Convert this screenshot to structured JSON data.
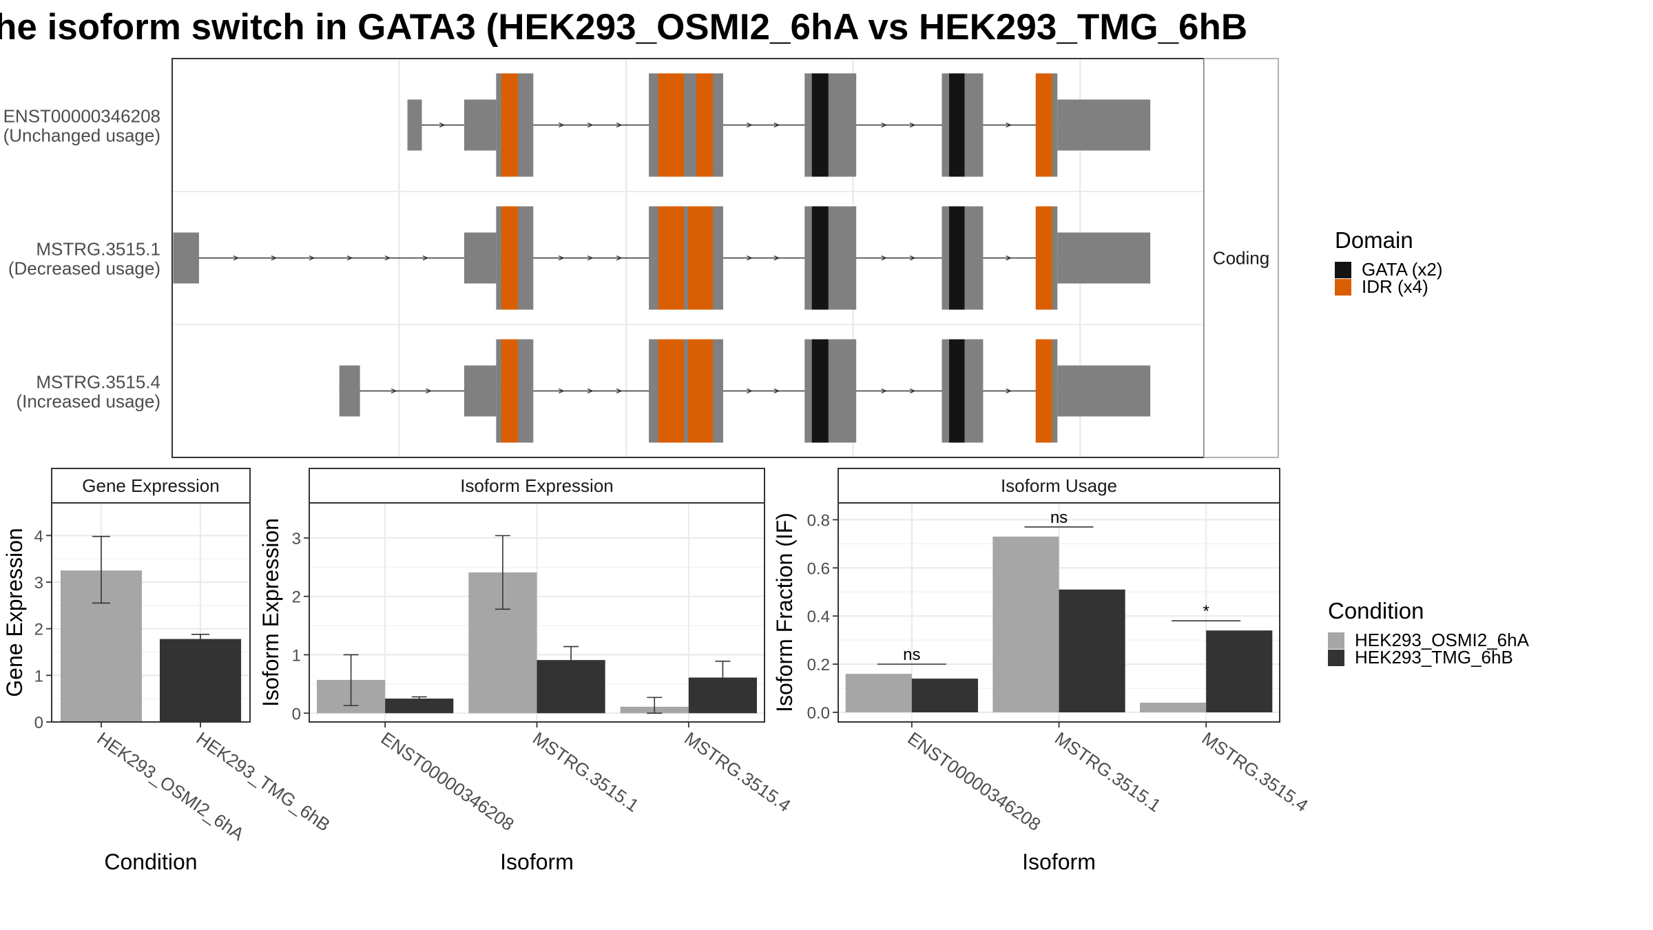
{
  "title": "he isoform switch in GATA3 (HEK293_OSMI2_6hA vs HEK293_TMG_6hB",
  "colors": {
    "exon": "#808080",
    "gata": "#141414",
    "idr": "#d95f02",
    "cond1": "#a6a6a6",
    "cond2": "#333333",
    "grid": "#ebebeb",
    "strip_bg": "#ffffff",
    "border": "#333333"
  },
  "transcript_panel": {
    "facet_label": "Coding",
    "genomic_range": [
      3,
      103
    ],
    "isoforms": [
      {
        "id": "ENST00000346208",
        "usage": "(Unchanged usage)",
        "utr": [
          [
            25.8,
            27.2
          ],
          [
            31.3,
            34.4
          ],
          [
            88.8,
            97.8
          ]
        ],
        "cds": [
          [
            34.4,
            38.0
          ],
          [
            49.2,
            56.4
          ],
          [
            64.3,
            69.3
          ],
          [
            77.6,
            81.6
          ],
          [
            86.7,
            88.8
          ]
        ],
        "domains": [
          {
            "type": "idr",
            "range": [
              34.9,
              36.5
            ]
          },
          {
            "type": "idr",
            "range": [
              50.1,
              52.6
            ]
          },
          {
            "type": "idr",
            "range": [
              53.8,
              55.4
            ]
          },
          {
            "type": "gata",
            "range": [
              65.0,
              66.6
            ]
          },
          {
            "type": "gata",
            "range": [
              78.3,
              79.8
            ]
          },
          {
            "type": "idr",
            "range": [
              86.7,
              88.3
            ]
          }
        ]
      },
      {
        "id": "MSTRG.3515.1",
        "usage": "(Decreased usage)",
        "utr": [
          [
            3.1,
            5.6
          ],
          [
            31.3,
            34.4
          ],
          [
            88.8,
            97.8
          ]
        ],
        "cds": [
          [
            34.4,
            38.0
          ],
          [
            49.2,
            56.4
          ],
          [
            64.3,
            69.3
          ],
          [
            77.6,
            81.6
          ],
          [
            86.7,
            88.8
          ]
        ],
        "domains": [
          {
            "type": "idr",
            "range": [
              34.9,
              36.5
            ]
          },
          {
            "type": "idr",
            "range": [
              50.1,
              52.6
            ]
          },
          {
            "type": "idr",
            "range": [
              53.0,
              55.4
            ]
          },
          {
            "type": "gata",
            "range": [
              65.0,
              66.6
            ]
          },
          {
            "type": "gata",
            "range": [
              78.3,
              79.8
            ]
          },
          {
            "type": "idr",
            "range": [
              86.7,
              88.3
            ]
          }
        ]
      },
      {
        "id": "MSTRG.3515.4",
        "usage": "(Increased usage)",
        "utr": [
          [
            19.2,
            21.2
          ],
          [
            31.3,
            34.4
          ],
          [
            88.8,
            97.8
          ]
        ],
        "cds": [
          [
            34.4,
            38.0
          ],
          [
            49.2,
            56.4
          ],
          [
            64.3,
            69.3
          ],
          [
            77.6,
            81.6
          ],
          [
            86.7,
            88.8
          ]
        ],
        "domains": [
          {
            "type": "idr",
            "range": [
              34.9,
              36.5
            ]
          },
          {
            "type": "idr",
            "range": [
              50.1,
              52.6
            ]
          },
          {
            "type": "idr",
            "range": [
              53.0,
              55.4
            ]
          },
          {
            "type": "gata",
            "range": [
              65.0,
              66.6
            ]
          },
          {
            "type": "gata",
            "range": [
              78.3,
              79.8
            ]
          },
          {
            "type": "idr",
            "range": [
              86.7,
              88.3
            ]
          }
        ]
      }
    ]
  },
  "domain_legend": {
    "title": "Domain",
    "items": [
      {
        "label": "GATA (x2)",
        "color": "#141414"
      },
      {
        "label": "IDR (x4)",
        "color": "#d95f02"
      }
    ]
  },
  "condition_legend": {
    "title": "Condition",
    "items": [
      {
        "label": "HEK293_OSMI2_6hA",
        "color": "#a6a6a6"
      },
      {
        "label": "HEK293_TMG_6hB",
        "color": "#333333"
      }
    ]
  },
  "chart_data": [
    {
      "type": "bar",
      "title": "Gene Expression",
      "xlabel": "Condition",
      "ylabel": "Gene Expression",
      "ylim": [
        0,
        4.7
      ],
      "yticks": [
        0,
        1,
        2,
        3,
        4
      ],
      "categories": [
        "HEK293_OSMI2_6hA",
        "HEK293_TMG_6hB"
      ],
      "values": [
        3.25,
        1.78
      ],
      "errors": [
        [
          2.55,
          3.98
        ],
        [
          1.7,
          1.88
        ]
      ],
      "colors": [
        "#a6a6a6",
        "#333333"
      ]
    },
    {
      "type": "bar",
      "title": "Isoform Expression",
      "xlabel": "Isoform",
      "ylabel": "Isoform Expression",
      "ylim": [
        -0.15,
        3.6
      ],
      "yticks": [
        0,
        1,
        2,
        3
      ],
      "categories": [
        "ENST00000346208",
        "MSTRG.3515.1",
        "MSTRG.3515.4"
      ],
      "series": [
        {
          "name": "HEK293_OSMI2_6hA",
          "color": "#a6a6a6",
          "values": [
            0.57,
            2.41,
            0.11
          ],
          "errors": [
            [
              0.13,
              1.0
            ],
            [
              1.78,
              3.04
            ],
            [
              0.0,
              0.27
            ]
          ]
        },
        {
          "name": "HEK293_TMG_6hB",
          "color": "#333333",
          "values": [
            0.25,
            0.91,
            0.61
          ],
          "errors": [
            [
              0.21,
              0.28
            ],
            [
              0.68,
              1.14
            ],
            [
              0.34,
              0.89
            ]
          ]
        }
      ]
    },
    {
      "type": "bar",
      "title": "Isoform Usage",
      "xlabel": "Isoform",
      "ylabel": "Isoform Fraction (IF)",
      "ylim": [
        -0.04,
        0.87
      ],
      "yticks": [
        0.0,
        0.2,
        0.4,
        0.6,
        0.8
      ],
      "ytick_labels": [
        "0.0",
        "0.2",
        "0.4",
        "0.6",
        "0.8"
      ],
      "categories": [
        "ENST00000346208",
        "MSTRG.3515.1",
        "MSTRG.3515.4"
      ],
      "series": [
        {
          "name": "HEK293_OSMI2_6hA",
          "color": "#a6a6a6",
          "values": [
            0.16,
            0.73,
            0.04
          ]
        },
        {
          "name": "HEK293_TMG_6hB",
          "color": "#333333",
          "values": [
            0.14,
            0.51,
            0.34
          ]
        }
      ],
      "significance": [
        {
          "label": "ns",
          "at": 0.2
        },
        {
          "label": "ns",
          "at": 0.77
        },
        {
          "label": "*",
          "at": 0.38
        }
      ]
    }
  ]
}
